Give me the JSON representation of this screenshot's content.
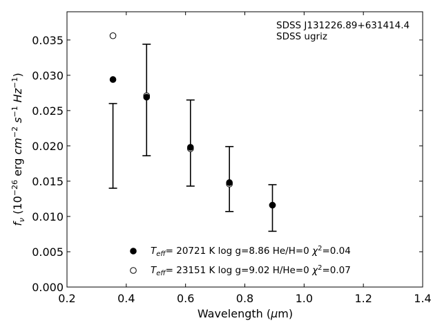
{
  "chart_data": {
    "type": "scatter",
    "xlabel": "Wavelength (μm)",
    "ylabel": "f_ν (10^-26 erg cm^-2 s^-1 Hz^-1)",
    "xlim": [
      0.2,
      1.4
    ],
    "ylim": [
      0.0,
      0.039
    ],
    "x_ticks": [
      "0.2",
      "0.4",
      "0.6",
      "0.8",
      "1.0",
      "1.2",
      "1.4"
    ],
    "y_ticks": [
      "0.000",
      "0.005",
      "0.010",
      "0.015",
      "0.020",
      "0.025",
      "0.030",
      "0.035"
    ],
    "annotations": [
      "SDSS J131226.89+631414.4",
      "SDSS ugriz"
    ],
    "grid": false,
    "legend_position": "bottom-center",
    "observed": {
      "x": [
        0.3551,
        0.4686,
        0.6166,
        0.748,
        0.8932
      ],
      "y": [
        0.02,
        0.0265,
        0.0204,
        0.0153,
        0.0112
      ],
      "yerr": [
        0.006,
        0.0079,
        0.0061,
        0.0046,
        0.0033
      ]
    },
    "series": [
      {
        "name": "Teff= 20721 K  log g=8.86  He/H=0  χ2=0.04",
        "marker": "filled",
        "x": [
          0.3551,
          0.4686,
          0.6166,
          0.748,
          0.8932
        ],
        "y": [
          0.0294,
          0.0269,
          0.0198,
          0.0148,
          0.0116
        ]
      },
      {
        "name": "Teff= 23151 K  log g=9.02  H/He=0  χ2=0.07",
        "marker": "open",
        "x": [
          0.3551,
          0.4686,
          0.6166,
          0.748,
          0.8932
        ],
        "y": [
          0.0356,
          0.0271,
          0.0196,
          0.0146,
          0.0116
        ]
      }
    ]
  },
  "legend": {
    "filled": {
      "teff": "T",
      "eff": "eff",
      "rest_a": "= 20721 K  log g=8.86  He/H=0  ",
      "chi": "χ",
      "sup": "2",
      "chi_val": "=0.04"
    },
    "open": {
      "teff": "T",
      "eff": "eff",
      "rest_a": "= 23151 K  log g=9.02  H/He=0  ",
      "chi": "χ",
      "sup": "2",
      "chi_val": "=0.07"
    }
  },
  "axis_text": {
    "x_main": "Wavelength (",
    "x_mu": "μ",
    "x_m": "m)",
    "y_f": "f",
    "y_nu": "ν",
    "y_pre": " (10",
    "y_exp1": "−26",
    "y_mid1": " erg ",
    "y_cm": "cm",
    "y_exp2": "−2",
    "y_s": " s",
    "y_exp3": "−1",
    "y_hz": " Hz",
    "y_exp4": "−1",
    "y_post": ")"
  }
}
